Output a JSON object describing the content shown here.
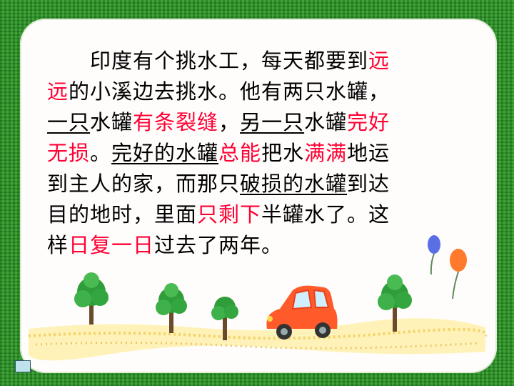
{
  "story": {
    "lines": [
      [
        {
          "t": "　　印度有个挑水工，每天都要到"
        },
        {
          "t": "远",
          "s": "red"
        }
      ],
      [
        {
          "t": "远",
          "s": "red"
        },
        {
          "t": "的小溪边去挑水。他有两只水罐，"
        }
      ],
      [
        {
          "t": "一只",
          "s": "ul"
        },
        {
          "t": "水罐"
        },
        {
          "t": "有条裂缝",
          "s": "red"
        },
        {
          "t": "，"
        },
        {
          "t": "另一只",
          "s": "ul"
        },
        {
          "t": "水罐"
        },
        {
          "t": "完好",
          "s": "red"
        }
      ],
      [
        {
          "t": "无损",
          "s": "red"
        },
        {
          "t": "。"
        },
        {
          "t": "完好的水罐",
          "s": "ul"
        },
        {
          "t": "总能",
          "s": "red"
        },
        {
          "t": "把水"
        },
        {
          "t": "满满",
          "s": "red"
        },
        {
          "t": "地运"
        }
      ],
      [
        {
          "t": "到主人的家，而那只"
        },
        {
          "t": "破损的水罐",
          "s": "ul"
        },
        {
          "t": "到达"
        }
      ],
      [
        {
          "t": "目的地时，里面"
        },
        {
          "t": "只剩下",
          "s": "red"
        },
        {
          "t": "半罐水了。这"
        }
      ],
      [
        {
          "t": "样"
        },
        {
          "t": "日复一日",
          "s": "red"
        },
        {
          "t": "过去了两年。"
        }
      ]
    ]
  },
  "colors": {
    "text": "#000000",
    "highlight": "#ff0033",
    "background_green": "#2f9a2f",
    "card": "#fffdfb"
  },
  "decorations": [
    "tree-icon",
    "tree-icon",
    "tree-icon",
    "tree-icon",
    "car-icon",
    "balloon-icon",
    "balloon-icon"
  ],
  "nav": {
    "icon": "slide-nav-icon"
  }
}
